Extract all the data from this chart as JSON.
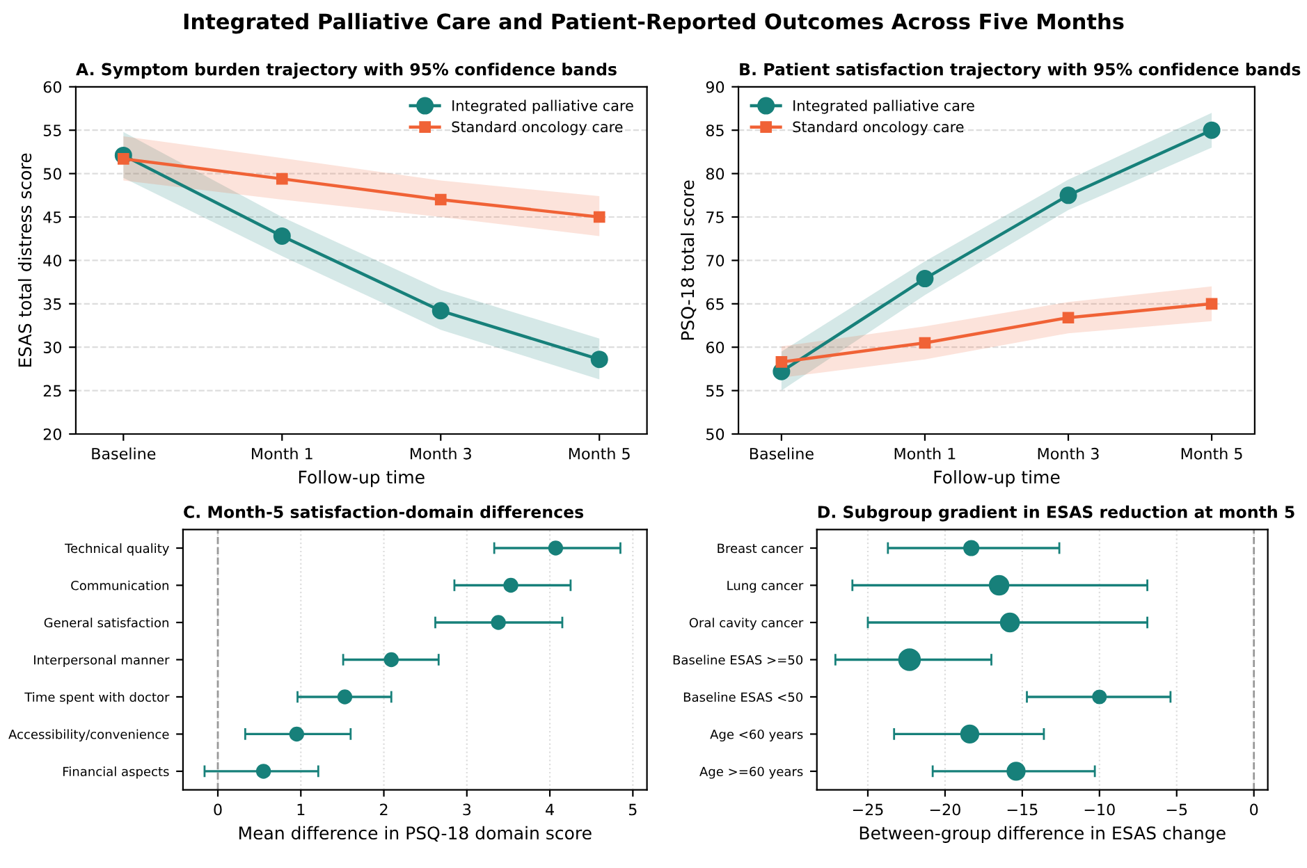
{
  "chart_data": [
    {
      "type": "other",
      "title": "Integrated Palliative Care and Patient-Reported Outcomes Across Five Months"
    },
    {
      "type": "line",
      "title": "A. Symptom burden trajectory with 95% confidence bands",
      "xlabel": "Follow-up time",
      "ylabel": "ESAS total distress score",
      "categories": [
        "Baseline",
        "Month 1",
        "Month 3",
        "Month 5"
      ],
      "ylim": [
        20,
        60
      ],
      "yticks": [
        20,
        25,
        30,
        35,
        40,
        45,
        50,
        55,
        60
      ],
      "grid": "y",
      "legend": "top right",
      "series": [
        {
          "name": "Integrated palliative care",
          "color": "#17807a",
          "marker": "circle",
          "values": [
            52.1,
            42.8,
            34.2,
            28.6
          ],
          "lower": [
            49.5,
            40.5,
            32.0,
            26.3
          ],
          "upper": [
            54.8,
            45.0,
            36.6,
            31.0
          ]
        },
        {
          "name": "Standard oncology care",
          "color": "#f06236",
          "marker": "square",
          "values": [
            51.7,
            49.4,
            47.0,
            45.0
          ],
          "lower": [
            49.2,
            47.0,
            45.0,
            42.8
          ],
          "upper": [
            54.3,
            51.8,
            49.2,
            47.4
          ]
        }
      ]
    },
    {
      "type": "line",
      "title": "B. Patient satisfaction trajectory with 95% confidence bands",
      "xlabel": "Follow-up time",
      "ylabel": "PSQ-18 total score",
      "categories": [
        "Baseline",
        "Month 1",
        "Month 3",
        "Month 5"
      ],
      "ylim": [
        50,
        90
      ],
      "yticks": [
        50,
        55,
        60,
        65,
        70,
        75,
        80,
        85,
        90
      ],
      "grid": "y",
      "legend": "top left",
      "series": [
        {
          "name": "Integrated palliative care",
          "color": "#17807a",
          "marker": "circle",
          "values": [
            57.2,
            67.9,
            77.5,
            85.0
          ],
          "lower": [
            55.0,
            66.0,
            75.8,
            83.0
          ],
          "upper": [
            59.5,
            69.9,
            79.3,
            87.0
          ]
        },
        {
          "name": "Standard oncology care",
          "color": "#f06236",
          "marker": "square",
          "values": [
            58.3,
            60.5,
            63.4,
            65.0
          ],
          "lower": [
            56.5,
            58.6,
            61.6,
            63.0
          ],
          "upper": [
            60.1,
            62.4,
            65.2,
            67.0
          ]
        }
      ]
    },
    {
      "type": "scatter",
      "orientation": "horizontal",
      "title": "C. Month-5 satisfaction-domain differences",
      "xlabel": "Mean difference in PSQ-18 domain score",
      "categories": [
        "Technical quality",
        "Communication",
        "General satisfaction",
        "Interpersonal manner",
        "Time spent with doctor",
        "Accessibility/convenience",
        "Financial aspects"
      ],
      "values": [
        4.07,
        3.53,
        3.38,
        2.09,
        1.53,
        0.95,
        0.55
      ],
      "errors": [
        [
          3.33,
          4.85
        ],
        [
          2.85,
          4.25
        ],
        [
          2.62,
          4.15
        ],
        [
          1.51,
          2.66
        ],
        [
          0.96,
          2.09
        ],
        [
          0.33,
          1.6
        ],
        [
          -0.16,
          1.21
        ]
      ],
      "color": "#17807a",
      "marker": "circle",
      "xlim": [
        -0.42,
        5.17
      ],
      "xticks": [
        0,
        1,
        2,
        3,
        4,
        5
      ],
      "grid": "x",
      "ref_lines": [
        {
          "axis": "x",
          "value": 0,
          "color": "#999999",
          "line_style": "dashed"
        }
      ]
    },
    {
      "type": "bubble",
      "orientation": "horizontal",
      "title": "D. Subgroup gradient in ESAS reduction at month 5",
      "xlabel": "Between-group difference in ESAS change",
      "categories": [
        "Breast cancer",
        "Lung cancer",
        "Oral cavity cancer",
        "Baseline ESAS >=50",
        "Baseline ESAS <50",
        "Age <60 years",
        "Age >=60 years"
      ],
      "values": [
        -18.3,
        -16.5,
        -15.8,
        -22.3,
        -10.0,
        -18.4,
        -15.4
      ],
      "errors": [
        [
          -23.7,
          -12.6
        ],
        [
          -26.0,
          -6.9
        ],
        [
          -25.0,
          -6.9
        ],
        [
          -27.1,
          -17.0
        ],
        [
          -14.7,
          -5.4
        ],
        [
          -23.3,
          -13.6
        ],
        [
          -20.8,
          -10.3
        ]
      ],
      "sizes": [
        0.47,
        0.8,
        0.75,
        1,
        0.38,
        0.68,
        0.68
      ],
      "color": "#17807a",
      "xlim": [
        -28.3,
        0.9
      ],
      "xticks": [
        {
          "value": -25,
          "label": "−25"
        },
        {
          "value": -20,
          "label": "−20"
        },
        {
          "value": -15,
          "label": "−15"
        },
        {
          "value": -10,
          "label": "−10"
        },
        {
          "value": -5,
          "label": "−5"
        },
        0
      ],
      "grid": "x",
      "ref_lines": [
        {
          "axis": "x",
          "value": 0,
          "color": "#999999",
          "line_style": "dashed"
        }
      ]
    }
  ]
}
